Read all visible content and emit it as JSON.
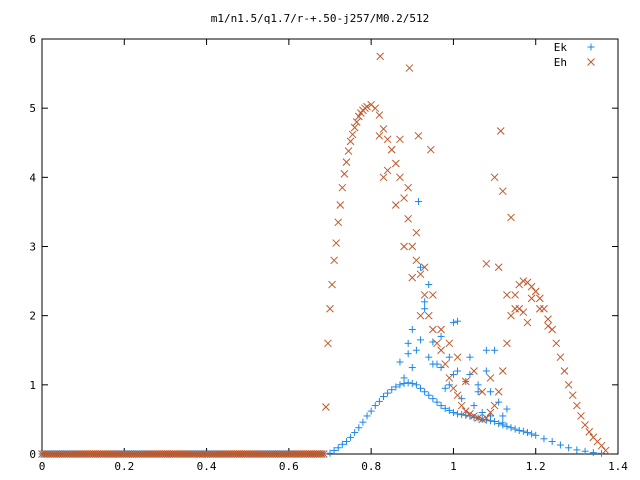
{
  "chart_data": {
    "type": "scatter",
    "title": "m1/n1.5/q1.7/r-+.50-j257/M0.2/512",
    "xlabel": "",
    "ylabel": "",
    "xlim": [
      0,
      1.4
    ],
    "ylim": [
      0,
      6
    ],
    "x_ticks": [
      "0",
      "0.2",
      "0.4",
      "0.6",
      "0.8",
      "1",
      "1.2",
      "1.4"
    ],
    "y_ticks": [
      "0",
      "1",
      "2",
      "3",
      "4",
      "5",
      "6"
    ],
    "grid": false,
    "legend_position": "top-right",
    "series": [
      {
        "name": "Ek",
        "marker": "plus",
        "color": "#1a88e8",
        "x": [
          0.7,
          0.71,
          0.72,
          0.73,
          0.74,
          0.75,
          0.76,
          0.77,
          0.78,
          0.79,
          0.8,
          0.81,
          0.82,
          0.83,
          0.84,
          0.85,
          0.86,
          0.87,
          0.88,
          0.89,
          0.9,
          0.91,
          0.92,
          0.93,
          0.94,
          0.95,
          0.96,
          0.97,
          0.98,
          0.99,
          1.0,
          1.01,
          1.02,
          1.03,
          1.04,
          1.05,
          1.06,
          1.07,
          1.08,
          1.09,
          1.1,
          1.11,
          1.12,
          1.13,
          1.14,
          1.15,
          1.16,
          1.17,
          1.18,
          1.19,
          1.2,
          1.22,
          1.24,
          1.26,
          1.28,
          1.3,
          1.32,
          1.34,
          1.36,
          0.87,
          0.88,
          0.89,
          0.9,
          0.91,
          0.92,
          0.93,
          0.94,
          0.95,
          0.96,
          0.97,
          0.98,
          0.99,
          1.0,
          1.01,
          1.02,
          1.03,
          1.04,
          1.05,
          1.06,
          1.07,
          1.08,
          1.09,
          1.1,
          1.11,
          1.12,
          1.13,
          0.915,
          0.92,
          0.93,
          0.89,
          0.9,
          0.94,
          0.95,
          0.97,
          0.99,
          1.0,
          1.01,
          1.04,
          1.06,
          1.08,
          1.09,
          1.12
        ],
        "y": [
          0.01,
          0.05,
          0.09,
          0.14,
          0.18,
          0.24,
          0.31,
          0.38,
          0.46,
          0.55,
          0.62,
          0.7,
          0.76,
          0.83,
          0.88,
          0.93,
          0.97,
          1.0,
          1.02,
          1.03,
          1.02,
          1.0,
          0.95,
          0.9,
          0.85,
          0.8,
          0.75,
          0.7,
          0.66,
          0.63,
          0.6,
          0.58,
          0.57,
          0.56,
          0.55,
          0.53,
          0.52,
          0.5,
          0.49,
          0.48,
          0.47,
          0.44,
          0.42,
          0.4,
          0.38,
          0.36,
          0.34,
          0.33,
          0.31,
          0.29,
          0.27,
          0.22,
          0.18,
          0.13,
          0.09,
          0.06,
          0.04,
          0.02,
          0.01,
          1.33,
          1.1,
          1.45,
          1.25,
          1.5,
          1.65,
          2.1,
          1.4,
          1.62,
          1.3,
          1.7,
          0.95,
          1.4,
          1.9,
          1.2,
          0.8,
          1.05,
          1.4,
          0.7,
          1.0,
          0.6,
          1.2,
          0.9,
          1.5,
          0.75,
          0.55,
          0.65,
          3.65,
          2.7,
          2.2,
          1.6,
          1.8,
          2.45,
          1.3,
          1.25,
          1.0,
          1.15,
          1.92,
          1.15,
          0.9,
          1.5,
          0.55,
          0.45
        ]
      },
      {
        "name": "Eh",
        "marker": "cross",
        "color": "#c0582a",
        "x": [
          0.69,
          0.695,
          0.7,
          0.705,
          0.71,
          0.715,
          0.72,
          0.725,
          0.73,
          0.735,
          0.74,
          0.745,
          0.75,
          0.755,
          0.76,
          0.765,
          0.77,
          0.775,
          0.78,
          0.785,
          0.79,
          0.8,
          0.81,
          0.82,
          0.83,
          0.84,
          0.85,
          0.86,
          0.87,
          0.88,
          0.89,
          0.9,
          0.91,
          0.92,
          0.93,
          0.94,
          0.95,
          0.96,
          0.97,
          0.98,
          0.99,
          1.0,
          1.01,
          1.02,
          1.03,
          1.04,
          1.05,
          1.06,
          1.07,
          1.08,
          1.09,
          1.1,
          1.11,
          1.12,
          1.13,
          1.14,
          1.15,
          1.16,
          1.17,
          1.18,
          1.19,
          1.2,
          1.21,
          1.22,
          1.23,
          1.24,
          1.25,
          1.26,
          1.27,
          1.28,
          1.29,
          1.3,
          1.31,
          1.32,
          1.33,
          1.34,
          1.35,
          1.36,
          1.37,
          0.82,
          0.84,
          0.86,
          0.88,
          0.9,
          0.92,
          0.83,
          0.85,
          0.87,
          0.89,
          0.91,
          0.93,
          0.95,
          0.97,
          0.99,
          1.01,
          1.03,
          1.05,
          1.07,
          1.09,
          1.11,
          1.13,
          1.15,
          1.17,
          1.19,
          1.21,
          1.23,
          1.08,
          1.1,
          1.12,
          1.14,
          1.16,
          1.18,
          1.2,
          0.822,
          0.893,
          0.915,
          0.945,
          1.115
        ],
        "y": [
          0.68,
          1.6,
          2.1,
          2.45,
          2.8,
          3.05,
          3.35,
          3.6,
          3.85,
          4.05,
          4.22,
          4.38,
          4.52,
          4.62,
          4.72,
          4.8,
          4.88,
          4.93,
          4.97,
          5.0,
          5.02,
          5.05,
          5.0,
          4.9,
          4.7,
          4.55,
          4.4,
          4.2,
          4.0,
          3.7,
          3.4,
          3.0,
          2.8,
          2.6,
          2.3,
          2.0,
          1.8,
          1.6,
          1.5,
          1.3,
          1.1,
          0.95,
          0.85,
          0.7,
          0.62,
          0.58,
          0.55,
          0.52,
          0.5,
          0.52,
          0.6,
          0.7,
          0.9,
          1.2,
          1.6,
          2.0,
          2.3,
          2.45,
          2.5,
          2.48,
          2.42,
          2.35,
          2.25,
          2.1,
          1.95,
          1.8,
          1.6,
          1.4,
          1.2,
          1.0,
          0.85,
          0.7,
          0.55,
          0.42,
          0.32,
          0.24,
          0.18,
          0.12,
          0.05,
          4.6,
          4.1,
          3.6,
          3.0,
          2.55,
          2.0,
          4.0,
          4.4,
          4.55,
          3.85,
          3.2,
          2.7,
          2.3,
          1.8,
          1.6,
          1.4,
          1.05,
          1.2,
          0.9,
          1.1,
          2.7,
          2.3,
          2.1,
          2.05,
          2.25,
          2.1,
          1.85,
          2.75,
          4.0,
          3.8,
          3.42,
          2.1,
          1.9,
          2.35,
          5.75,
          5.58,
          4.6,
          4.4,
          4.67
        ]
      }
    ]
  }
}
